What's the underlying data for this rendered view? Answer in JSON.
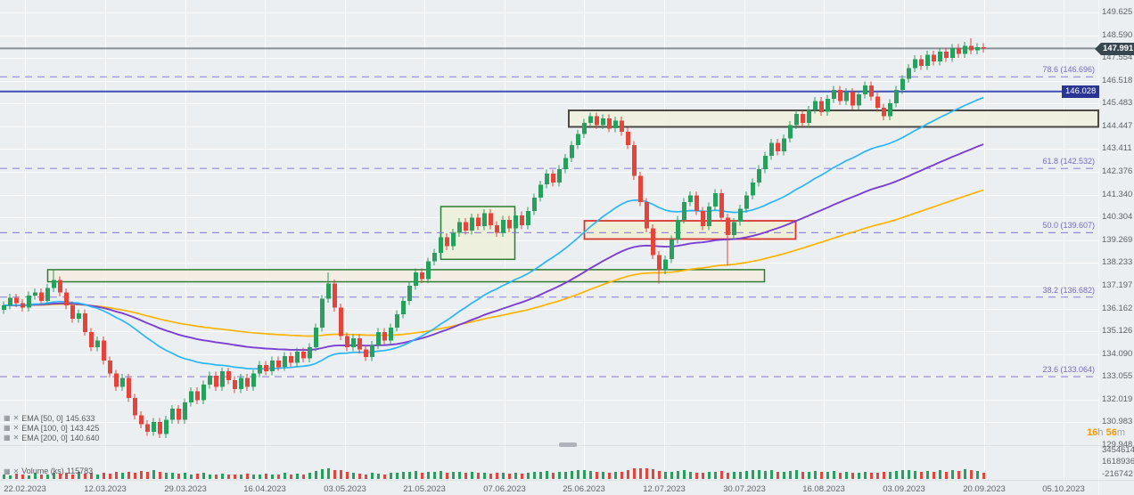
{
  "icons": {
    "settings_glyph": "▦",
    "remove_glyph": "✕"
  },
  "current_price": {
    "value": "147.991"
  },
  "price_line": {
    "value": "146.028"
  },
  "countdown": {
    "hours": "16",
    "hours_unit": "h",
    "minutes": "56",
    "minutes_unit": "m"
  },
  "studies": {
    "emas": [
      {
        "name": "EMA [50, 0]",
        "value": "145.633",
        "color": "#29b6f6"
      },
      {
        "name": "EMA [100, 0]",
        "value": "143.425",
        "color": "#7a3fd1"
      },
      {
        "name": "EMA [200, 0]",
        "value": "140.640",
        "color": "#ffb300"
      }
    ],
    "volume": {
      "name": "Volume (ks)",
      "value": "115783"
    }
  },
  "price_axis": {
    "ticks": [
      "149.625",
      "148.590",
      "147.554",
      "146.518",
      "145.483",
      "144.447",
      "143.411",
      "142.376",
      "141.340",
      "140.304",
      "139.269",
      "138.233",
      "137.197",
      "136.162",
      "135.126",
      "134.090",
      "133.055",
      "132.019",
      "130.983",
      "129.948"
    ]
  },
  "volume_axis": {
    "ticks": [
      "3454614",
      "1618936",
      "-216742"
    ]
  },
  "date_axis": {
    "ticks": [
      "22.02.2023",
      "12.03.2023",
      "29.03.2023",
      "16.04.2023",
      "03.05.2023",
      "21.05.2023",
      "07.06.2023",
      "25.06.2023",
      "12.07.2023",
      "30.07.2023",
      "16.08.2023",
      "03.09.2023",
      "20.09.2023",
      "05.10.2023"
    ]
  },
  "chart_data": {
    "type": "candlestick",
    "x_unit": "trading-day",
    "ylim": [
      129.5,
      149.9
    ],
    "grid": true,
    "first_open": 136.1,
    "open_rule": "previous_close",
    "closes": [
      136.3,
      136.65,
      136.4,
      136.2,
      136.75,
      136.9,
      136.5,
      137.1,
      137.45,
      136.9,
      136.3,
      135.7,
      135.95,
      135.1,
      134.4,
      134.7,
      133.8,
      133.2,
      132.6,
      133.0,
      132.1,
      131.3,
      130.9,
      130.55,
      131.0,
      130.45,
      131.1,
      131.6,
      131.1,
      131.9,
      132.4,
      132.0,
      132.7,
      133.1,
      132.6,
      133.3,
      132.9,
      132.5,
      133.0,
      132.6,
      133.2,
      133.6,
      133.3,
      133.8,
      133.5,
      134.0,
      133.7,
      134.2,
      133.9,
      134.4,
      135.3,
      136.6,
      137.3,
      136.2,
      134.9,
      134.4,
      134.8,
      134.3,
      133.95,
      134.5,
      135.1,
      134.7,
      135.3,
      135.9,
      136.5,
      137.2,
      137.8,
      137.5,
      138.3,
      138.7,
      139.4,
      139.0,
      139.6,
      140.1,
      139.7,
      140.3,
      139.9,
      140.5,
      139.95,
      139.6,
      140.2,
      139.8,
      140.4,
      139.95,
      140.6,
      141.2,
      141.8,
      142.3,
      141.9,
      142.5,
      143.0,
      143.6,
      144.1,
      144.6,
      144.9,
      144.5,
      144.8,
      144.35,
      144.7,
      144.2,
      143.6,
      142.2,
      141.0,
      139.8,
      138.6,
      137.9,
      138.4,
      139.3,
      140.2,
      141.0,
      141.3,
      140.6,
      139.9,
      140.8,
      141.4,
      140.3,
      139.5,
      140.1,
      140.7,
      141.3,
      141.9,
      142.5,
      143.1,
      143.7,
      143.3,
      143.9,
      144.5,
      145.0,
      144.6,
      145.2,
      145.6,
      145.1,
      145.7,
      146.1,
      145.6,
      146.0,
      145.4,
      145.9,
      146.3,
      145.8,
      145.3,
      144.9,
      145.5,
      146.1,
      146.6,
      147.1,
      147.5,
      147.2,
      147.7,
      147.4,
      147.85,
      147.55,
      148.0,
      147.75,
      148.1,
      147.9,
      148.05,
      147.99
    ],
    "wick_overrides": {
      "8": {
        "h": 137.95
      },
      "25": {
        "l": 130.28
      },
      "52": {
        "h": 137.8
      },
      "105": {
        "l": 137.3
      },
      "116": {
        "l": 138.1
      },
      "155": {
        "h": 148.45
      }
    },
    "volumes_rel": [
      0.35,
      0.3,
      0.45,
      0.4,
      0.3,
      0.5,
      0.35,
      0.4,
      0.55,
      0.45,
      0.5,
      0.4,
      0.6,
      0.45,
      0.5,
      0.4,
      0.55,
      0.45,
      0.6,
      0.5,
      0.65,
      0.55,
      0.7,
      0.6,
      0.75,
      0.65,
      0.5,
      0.55,
      0.45,
      0.5,
      0.4,
      0.45,
      0.5,
      0.4,
      0.35,
      0.45,
      0.4,
      0.35,
      0.4,
      0.45,
      0.35,
      0.4,
      0.45,
      0.35,
      0.4,
      0.5,
      0.4,
      0.45,
      0.4,
      0.5,
      0.7,
      0.85,
      0.9,
      0.75,
      0.8,
      0.6,
      0.5,
      0.45,
      0.4,
      0.5,
      0.45,
      0.4,
      0.5,
      0.55,
      0.6,
      0.65,
      0.7,
      0.55,
      0.6,
      0.65,
      0.7,
      0.55,
      0.6,
      0.65,
      0.5,
      0.6,
      0.5,
      0.55,
      0.45,
      0.5,
      0.55,
      0.45,
      0.5,
      0.45,
      0.55,
      0.6,
      0.65,
      0.7,
      0.55,
      0.6,
      0.65,
      0.7,
      0.75,
      0.8,
      0.7,
      0.6,
      0.65,
      0.55,
      0.6,
      0.65,
      0.8,
      0.9,
      0.95,
      0.9,
      0.85,
      0.7,
      0.6,
      0.65,
      0.7,
      0.75,
      0.6,
      0.55,
      0.5,
      0.6,
      0.65,
      0.7,
      0.55,
      0.6,
      0.65,
      0.7,
      0.75,
      0.8,
      0.7,
      0.75,
      0.6,
      0.65,
      0.7,
      0.75,
      0.6,
      0.65,
      0.7,
      0.6,
      0.65,
      0.7,
      0.55,
      0.6,
      0.5,
      0.55,
      0.6,
      0.5,
      0.55,
      0.6,
      0.65,
      0.7,
      0.75,
      0.8,
      0.7,
      0.65,
      0.7,
      0.6,
      0.75,
      0.65,
      0.8,
      0.7,
      0.85,
      0.75,
      0.7,
      0.5
    ],
    "fib_levels": [
      {
        "label": "78.6 (146.696)",
        "price": 146.696
      },
      {
        "label": "61.8 (142.532)",
        "price": 142.532
      },
      {
        "label": "50.0 (139.607)",
        "price": 139.607
      },
      {
        "label": "38.2 (136.682)",
        "price": 136.682
      },
      {
        "label": "23.6 (133.064)",
        "price": 133.064
      }
    ],
    "lines": [
      {
        "name": "current-price-line",
        "price": 147.991,
        "color": "#8a9097",
        "width": 2
      },
      {
        "name": "alert-line",
        "price": 146.028,
        "color": "#3f51b5",
        "width": 2
      }
    ],
    "zones": [
      {
        "name": "supply-zone",
        "x_from_index": 91,
        "x_to_index": -1,
        "price_top": 145.17,
        "price_bottom": 144.42,
        "border": "#4a4a42",
        "fill": "#f0f0dc",
        "bw": 2
      },
      {
        "name": "consolidation-box",
        "x_from_index": 70.5,
        "x_to_index": 81.5,
        "price_top": 140.8,
        "price_bottom": 138.4,
        "border": "#2e7d32",
        "fill": "#edf0d8",
        "bw": 1.5
      },
      {
        "name": "mid-red-box",
        "x_from_index": 93.5,
        "x_to_index": 126.5,
        "price_top": 140.15,
        "price_bottom": 139.32,
        "border": "#d93531",
        "fill": "#f0eed4",
        "bw": 1.8
      },
      {
        "name": "support-zone",
        "x_from_index": 7.5,
        "x_to_index": 121.5,
        "price_top": 137.93,
        "price_bottom": 137.38,
        "border": "#2e7d32",
        "fill": "#f5ece1",
        "bw": 1.5
      }
    ],
    "colors": {
      "up": "#26a05c",
      "down": "#e5443b",
      "fib": "#8578cf",
      "grid": "#ffffff",
      "bg": "#eceff1"
    }
  }
}
